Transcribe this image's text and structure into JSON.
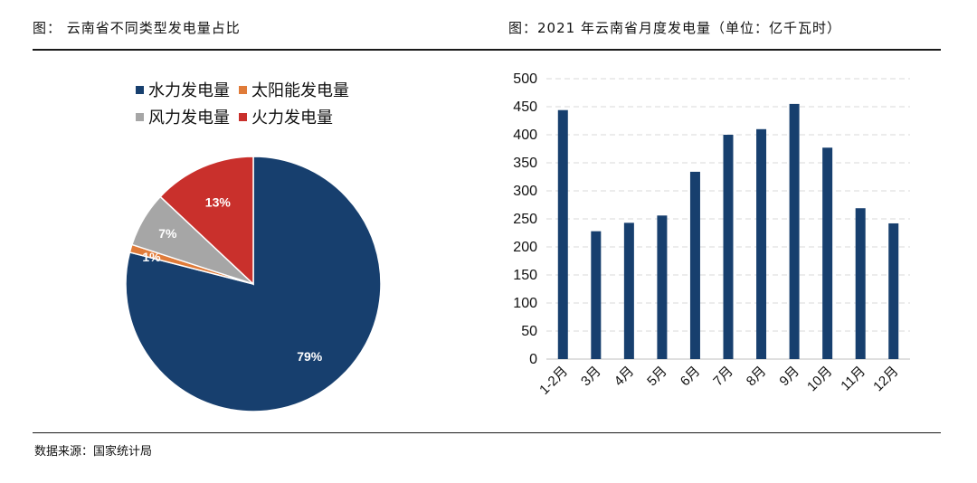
{
  "header": {
    "left_title": "图：  云南省不同类型发电量占比",
    "right_title": "图：2021 年云南省月度发电量（单位：亿千瓦时）"
  },
  "footer": {
    "source": "数据来源：国家统计局"
  },
  "chart_data": [
    {
      "type": "pie",
      "categories": [
        "水力发电量",
        "太阳能发电量",
        "风力发电量",
        "火力发电量"
      ],
      "values": [
        79,
        1,
        7,
        13
      ],
      "labels": [
        "79%",
        "1%",
        "7%",
        "13%"
      ],
      "colors": [
        "#173f6e",
        "#e07b39",
        "#a6a6a6",
        "#c9302c"
      ],
      "legend": "top"
    },
    {
      "type": "bar",
      "categories": [
        "1-2月",
        "3月",
        "4月",
        "5月",
        "6月",
        "7月",
        "8月",
        "9月",
        "10月",
        "11月",
        "12月"
      ],
      "values": [
        444,
        228,
        243,
        256,
        334,
        400,
        410,
        455,
        377,
        269,
        242
      ],
      "ylim": [
        0,
        500
      ],
      "yticks": [
        "0",
        "50",
        "100",
        "150",
        "200",
        "250",
        "300",
        "350",
        "400",
        "450",
        "500"
      ],
      "color": "#173f6e",
      "grid": true
    }
  ]
}
